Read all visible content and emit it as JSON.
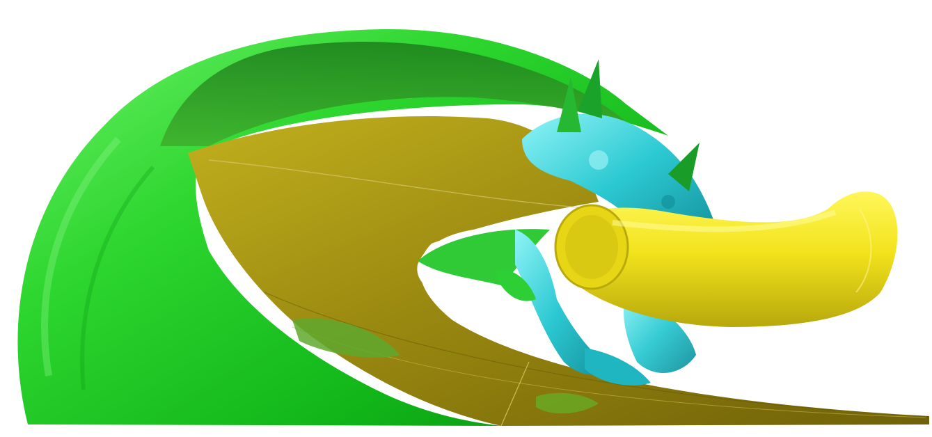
{
  "scene": {
    "background": "#ffffff",
    "surfaces": [
      {
        "name": "outer-vortex-sheet",
        "color": "#22d12a"
      },
      {
        "name": "wake-sheet",
        "color": "#a69412"
      },
      {
        "name": "tip-vortex-tube",
        "color": "#f0e31a"
      },
      {
        "name": "turbulent-structures",
        "color": "#27c6cf"
      }
    ]
  }
}
